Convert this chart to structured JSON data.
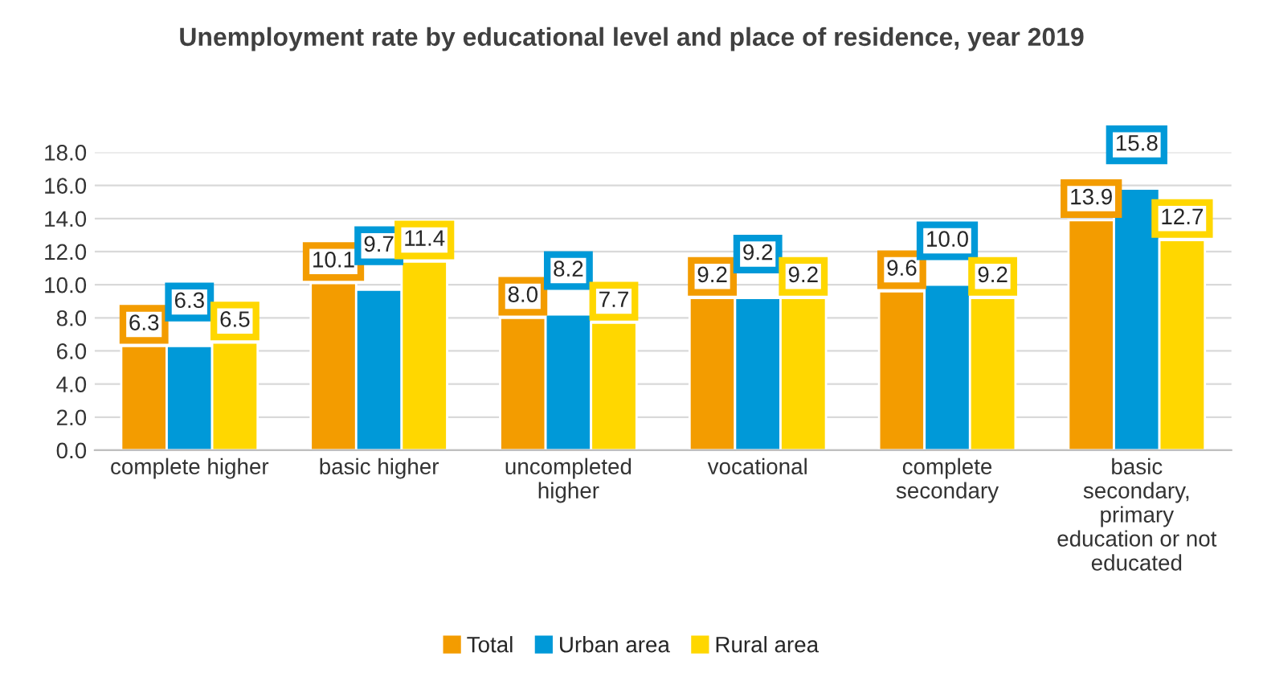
{
  "chart_data": {
    "type": "bar",
    "title": "Unemployment rate by educational level and place of residence, year 2019",
    "categories": [
      "complete higher",
      "basic higher",
      "uncompleted\nhigher",
      "vocational",
      "complete\nsecondary",
      "basic\nsecondary,\nprimary\neducation or not\neducated"
    ],
    "series": [
      {
        "name": "Total",
        "color": "#f39c00",
        "values": [
          6.3,
          10.1,
          8.0,
          9.2,
          9.6,
          13.9
        ],
        "value_labels": [
          "6.3",
          "10.1",
          "8.0",
          "9.2",
          "9.6",
          "13.9"
        ]
      },
      {
        "name": "Urban area",
        "color": "#0099d8",
        "values": [
          6.3,
          9.7,
          8.2,
          9.2,
          10.0,
          15.8
        ],
        "value_labels": [
          "6.3",
          "9.7",
          "8.2",
          "9.2",
          "10.0",
          "15.8"
        ]
      },
      {
        "name": "Rural area",
        "color": "#ffd700",
        "values": [
          6.5,
          11.4,
          7.7,
          9.2,
          9.2,
          12.7
        ],
        "value_labels": [
          "6.5",
          "11.4",
          "7.7",
          "9.2",
          "9.2",
          "12.7"
        ]
      }
    ],
    "ylim": [
      0,
      18
    ],
    "yticks": [
      {
        "value": 0,
        "label": "0.0"
      },
      {
        "value": 2,
        "label": "2.0"
      },
      {
        "value": 4,
        "label": "4.0"
      },
      {
        "value": 6,
        "label": "6.0"
      },
      {
        "value": 8,
        "label": "8.0"
      },
      {
        "value": 10,
        "label": "10.0"
      },
      {
        "value": 12,
        "label": "12.0"
      },
      {
        "value": 14,
        "label": "14.0"
      },
      {
        "value": 16,
        "label": "16.0"
      },
      {
        "value": 18,
        "label": "18.0"
      }
    ],
    "grid": "y",
    "legend": "bottom"
  }
}
